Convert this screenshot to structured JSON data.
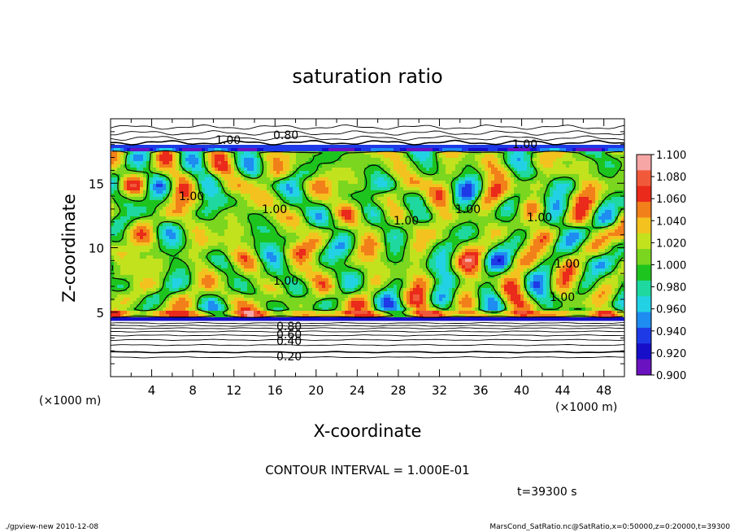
{
  "chart_data": {
    "type": "heatmap",
    "title": "saturation ratio",
    "xlabel": "X-coordinate",
    "ylabel": "Z-coordinate",
    "x_unit": "(×1000 m)",
    "y_unit": "(×1000 m)",
    "xlim": [
      0,
      50
    ],
    "ylim": [
      0,
      20
    ],
    "x_ticks": [
      "4",
      "8",
      "12",
      "16",
      "20",
      "24",
      "28",
      "32",
      "36",
      "40",
      "44",
      "48"
    ],
    "y_ticks": [
      "5",
      "10",
      "15"
    ],
    "colorbar": {
      "levels": [
        "1.100",
        "1.080",
        "1.060",
        "1.040",
        "1.020",
        "1.000",
        "0.980",
        "0.960",
        "0.940",
        "0.920",
        "0.900"
      ],
      "colors": [
        "#f7a6a6",
        "#f05a3a",
        "#ea2a1a",
        "#f2801a",
        "#f4c21e",
        "#c2e21e",
        "#7ad61e",
        "#1ec41e",
        "#1ed8a0",
        "#22d2e4",
        "#1e8cf0",
        "#1e3ae6",
        "#160ec8",
        "#6a12c0"
      ]
    },
    "contour_labels": [
      "1.00",
      "0.80",
      "1.00",
      "1.00",
      "1.00",
      "1.00",
      "1.00",
      "1.00",
      "1.00",
      "1.00",
      "1.00",
      "0.80",
      "0.60",
      "0.40",
      "0.20"
    ],
    "contour_interval_text": "CONTOUR INTERVAL = 1.000E-01",
    "time_text": "t=39300 s",
    "footer_left": "./gpview-new  2010-12-08",
    "footer_right": "MarsCond_SatRatio.nc@SatRatio,x=0:50000,z=0:20000,t=39300"
  }
}
